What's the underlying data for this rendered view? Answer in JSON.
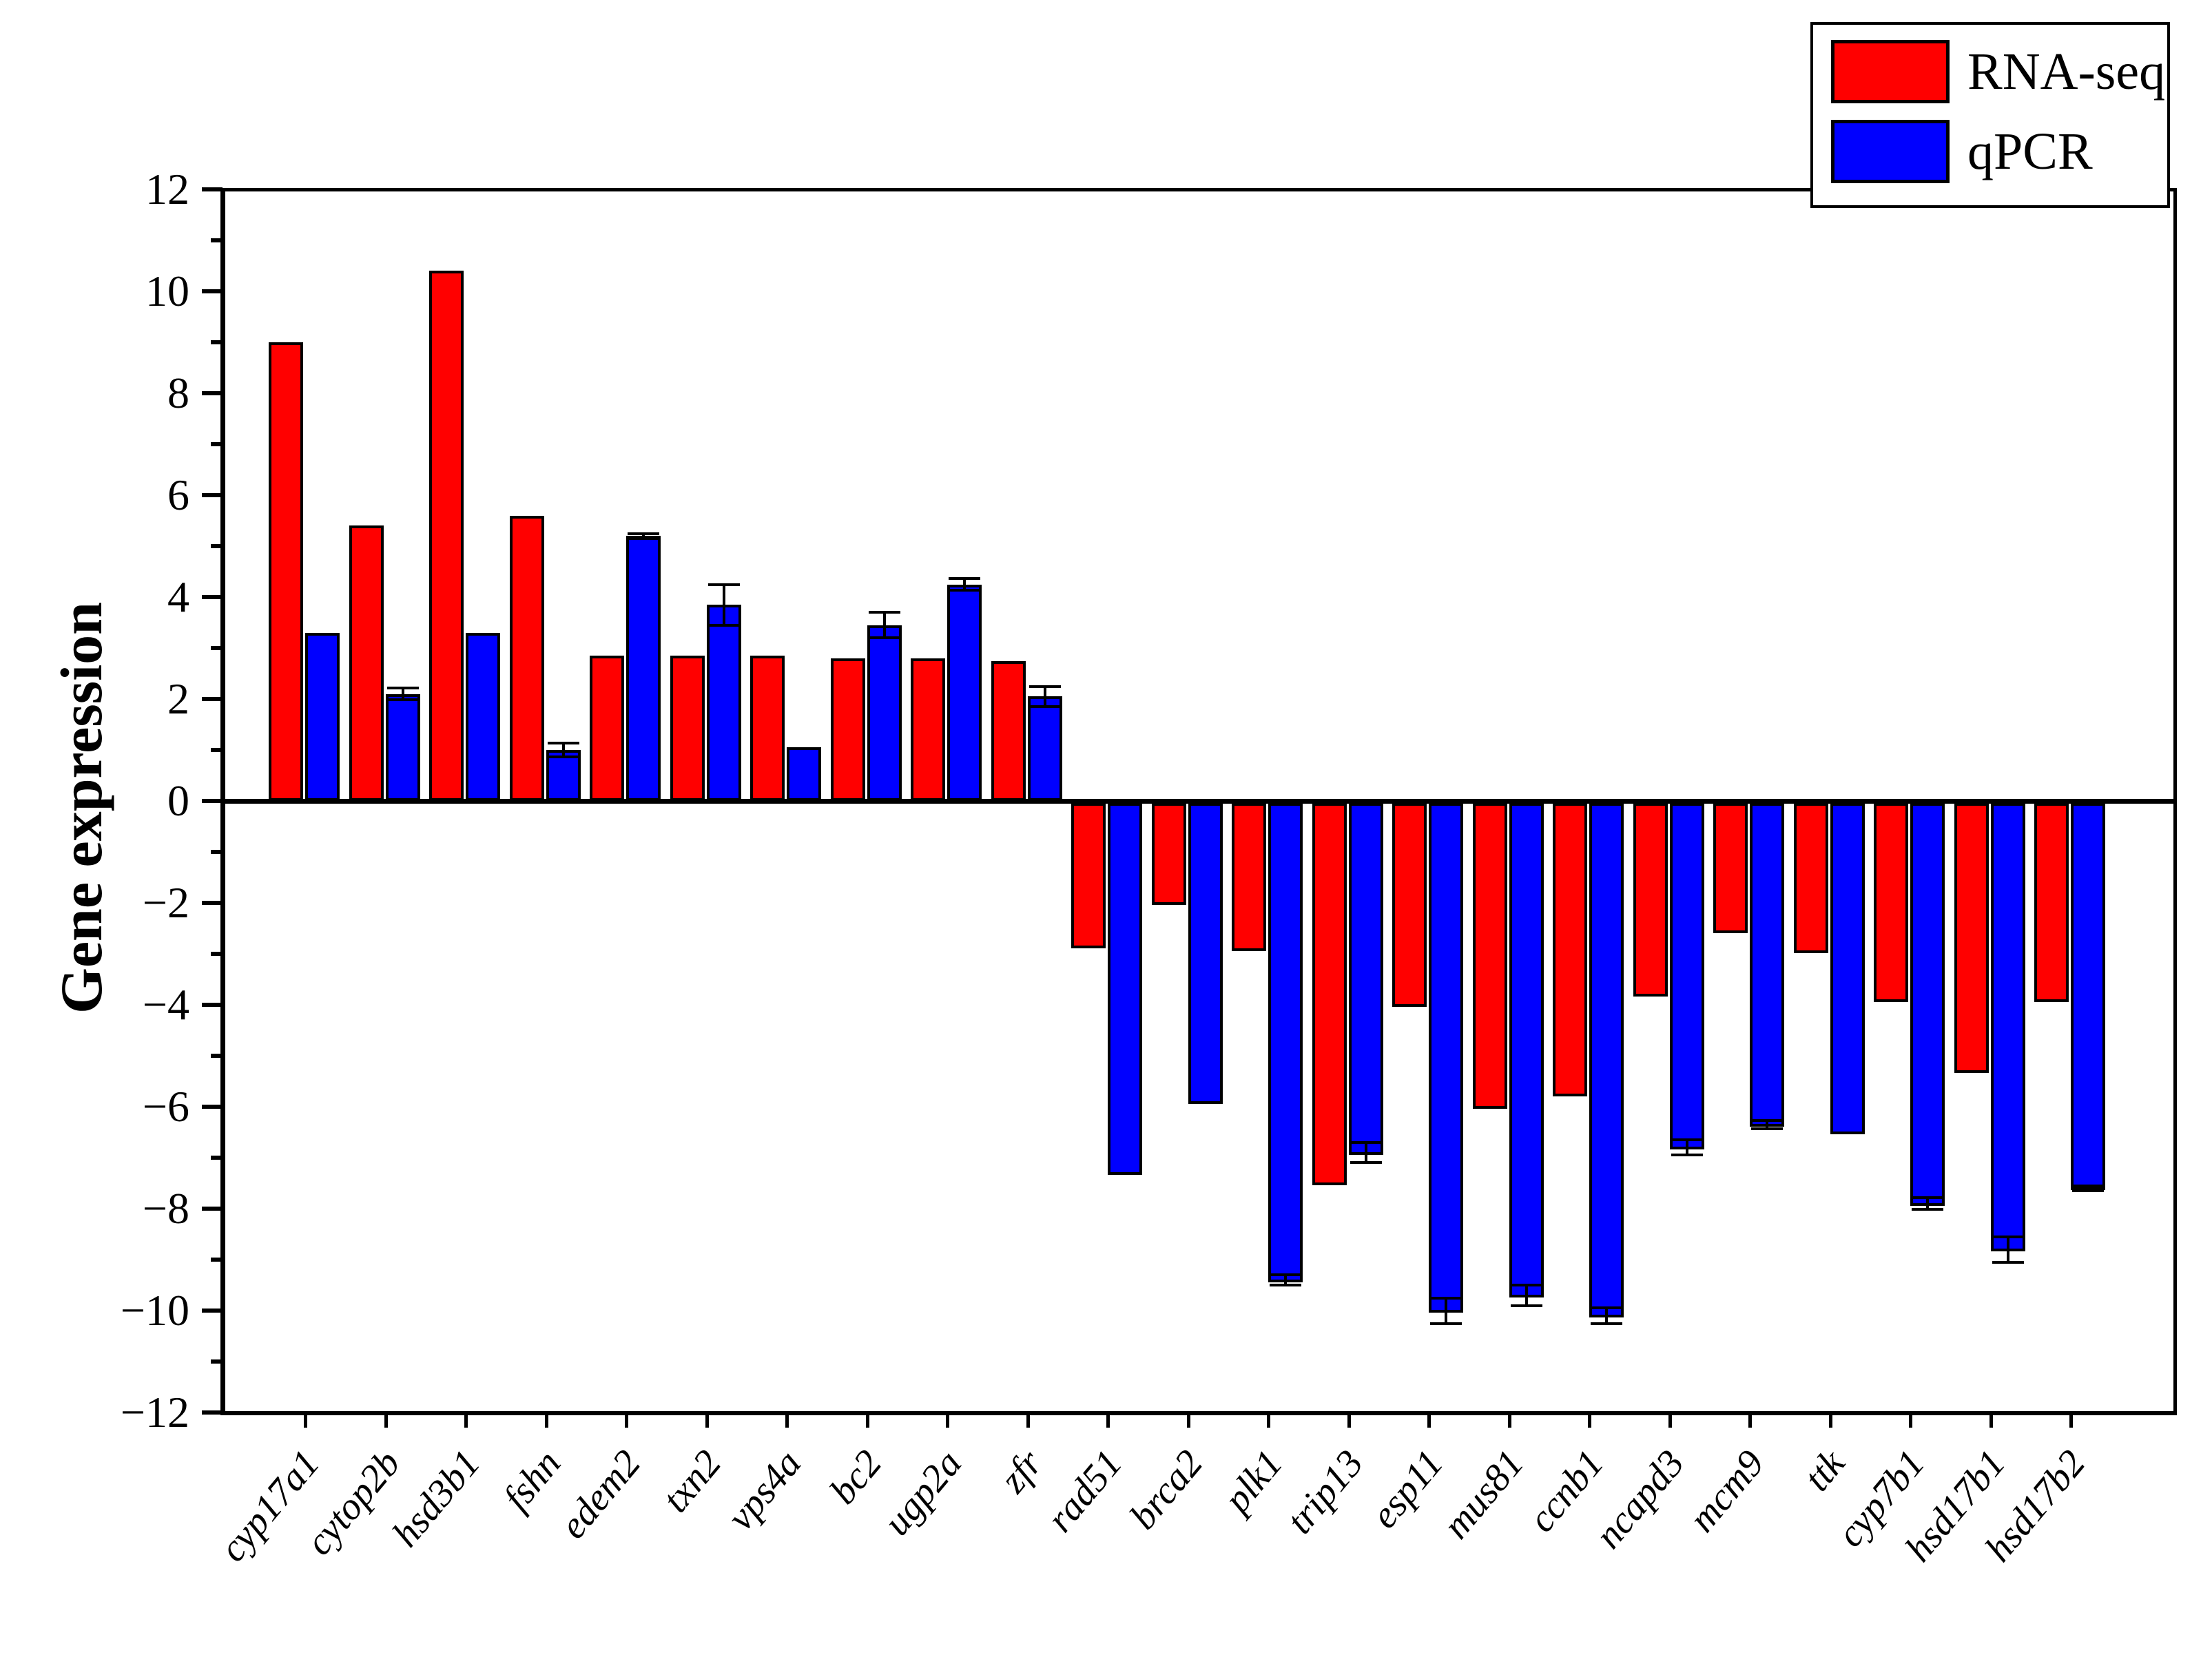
{
  "legend": {
    "items": [
      {
        "label": "RNA-seq",
        "color": "#ff0000"
      },
      {
        "label": "qPCR",
        "color": "#0000ff"
      }
    ]
  },
  "chart_data": {
    "type": "bar",
    "title": "",
    "xlabel": "",
    "ylabel": "Gene expression",
    "ylim": [
      -12,
      12
    ],
    "ymajor_ticks": [
      -12,
      -10,
      -8,
      -6,
      -4,
      -2,
      0,
      2,
      4,
      6,
      8,
      10,
      12
    ],
    "yminor_step": 1,
    "grid": false,
    "legend_position": "top-right",
    "bar_outline_color": "#000000",
    "categories": [
      "cyp17a1",
      "cytop2b",
      "hsd3b1",
      "fshn",
      "edem2",
      "txn2",
      "vps4a",
      "bc2",
      "ugp2a",
      "zfr",
      "rad51",
      "brca2",
      "plk1",
      "trip13",
      "esp11",
      "mus81",
      "ccnb1",
      "ncapd3",
      "mcm9",
      "ttk",
      "cyp7b1",
      "hsd17b1",
      "hsd17b2"
    ],
    "series": [
      {
        "name": "RNA-seq",
        "color": "#ff0000",
        "values": [
          9.0,
          5.4,
          10.4,
          5.6,
          2.85,
          2.85,
          2.85,
          2.8,
          2.8,
          2.75,
          -2.85,
          -2.0,
          -2.9,
          -7.5,
          -4.0,
          -6.0,
          -5.75,
          -3.8,
          -2.55,
          -2.95,
          -3.9,
          -5.3,
          -3.9
        ]
      },
      {
        "name": "qPCR",
        "color": "#0000ff",
        "values": [
          3.3,
          2.1,
          3.3,
          1.0,
          5.2,
          3.85,
          1.05,
          3.45,
          4.25,
          2.05,
          -7.3,
          -5.9,
          -9.4,
          -6.9,
          -10.0,
          -9.7,
          -10.1,
          -6.8,
          -6.35,
          -6.5,
          -7.9,
          -8.8,
          -7.6
        ],
        "errors": [
          0,
          0.12,
          0,
          0.13,
          0.05,
          0.4,
          0,
          0.25,
          0.12,
          0.2,
          0,
          0,
          0.1,
          0.2,
          0.25,
          0.2,
          0.15,
          0.15,
          0.08,
          0,
          0.12,
          0.25,
          0.05
        ]
      }
    ]
  }
}
